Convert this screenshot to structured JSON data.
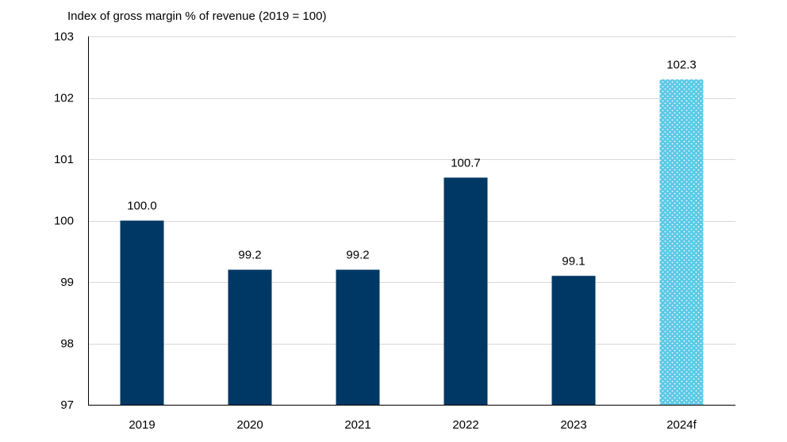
{
  "chart_data": {
    "type": "bar",
    "ylabel": "Index of gross margin % of revenue (2019 = 100)",
    "xlabel": "",
    "categories": [
      "2019",
      "2020",
      "2021",
      "2022",
      "2023",
      "2024f"
    ],
    "values": [
      100.0,
      99.2,
      99.2,
      100.7,
      99.1,
      102.3
    ],
    "data_labels": [
      "100.0",
      "99.2",
      "99.2",
      "100.7",
      "99.1",
      "102.3"
    ],
    "ylim": [
      97,
      103
    ],
    "yticks": [
      97,
      98,
      99,
      100,
      101,
      102,
      103
    ],
    "grid": true,
    "forecast_index": 5,
    "colors": {
      "actual": "#003865",
      "forecast": "#5bc8e6",
      "forecast_dots": "#ffffff"
    }
  }
}
